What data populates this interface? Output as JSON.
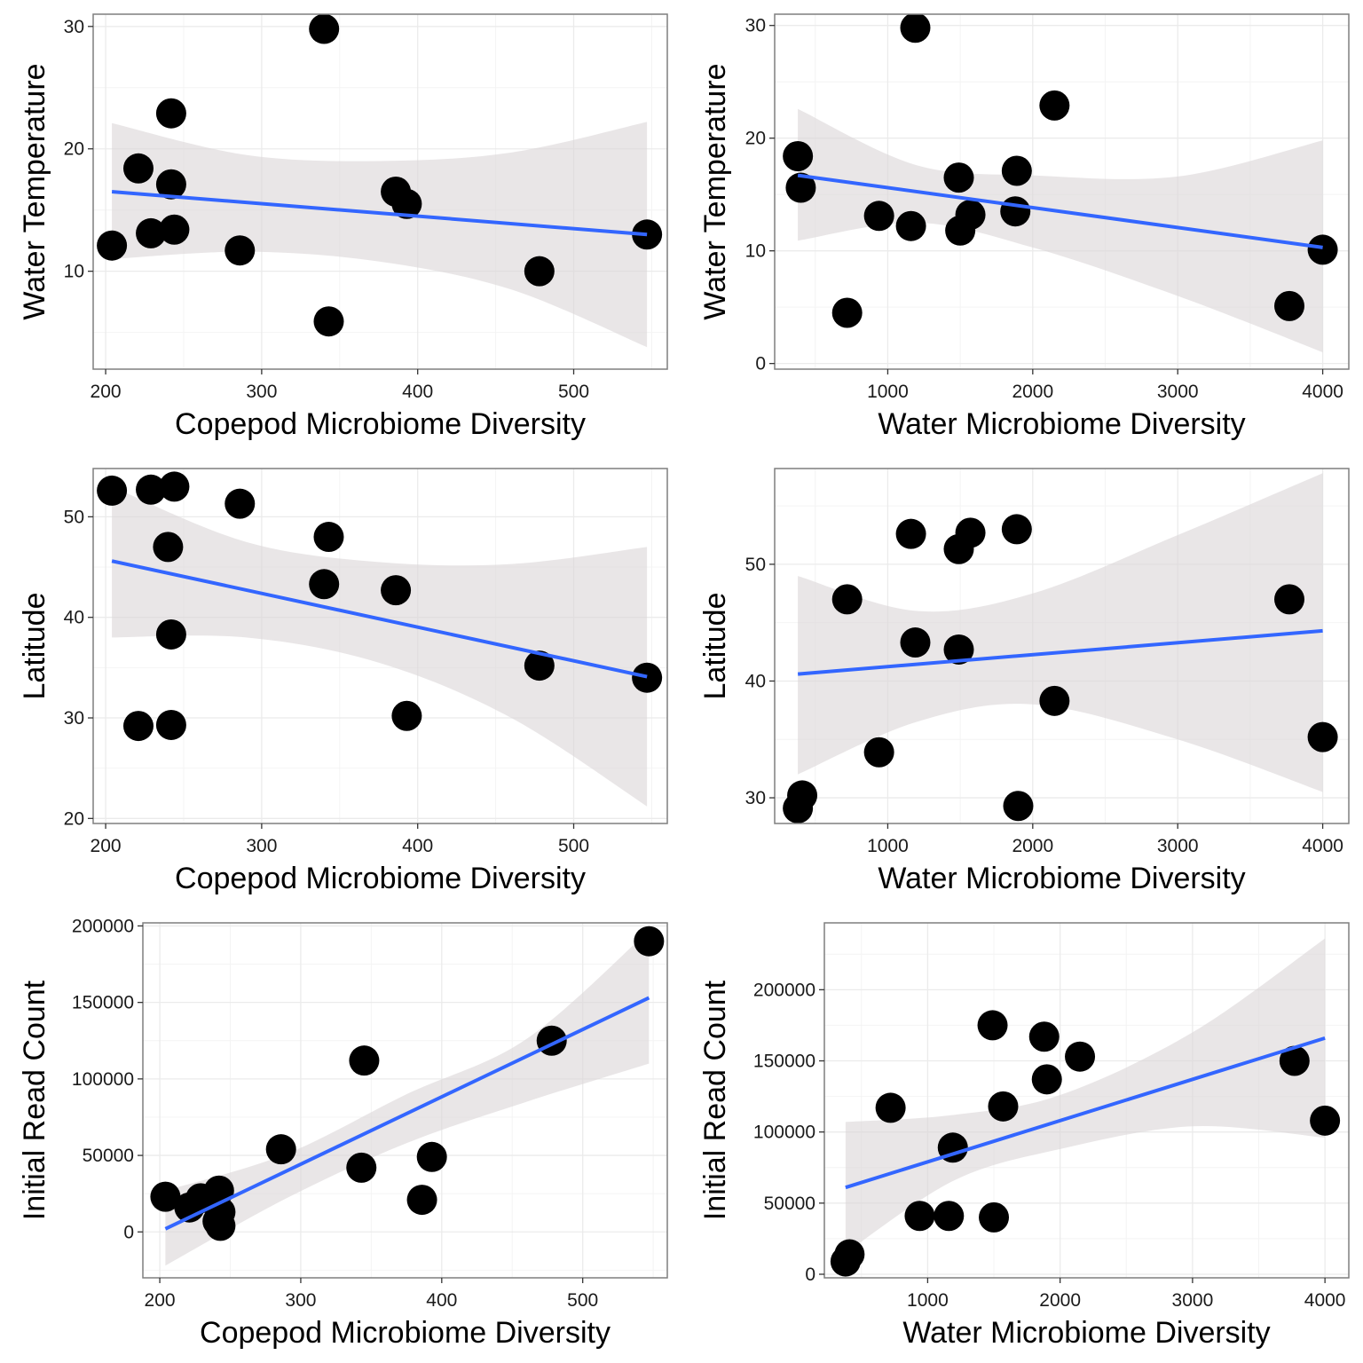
{
  "colors": {
    "line": "#3366ff",
    "ribbon": "#dcd6d8",
    "point": "#000000"
  },
  "chart_data": [
    {
      "type": "scatter",
      "xlabel": "Copepod Microbiome Diversity",
      "ylabel": "Water Temperature",
      "xlim": [
        192,
        560
      ],
      "ylim": [
        2,
        31
      ],
      "xticks": [
        200,
        300,
        400,
        500
      ],
      "xtick_labels": [
        "200",
        "300",
        "400",
        "500"
      ],
      "yticks": [
        10,
        20,
        30
      ],
      "ytick_labels": [
        "10",
        "20",
        "30"
      ],
      "grid": true,
      "points": [
        {
          "x": 204,
          "y": 12.1
        },
        {
          "x": 221,
          "y": 18.4
        },
        {
          "x": 229,
          "y": 13.1
        },
        {
          "x": 242,
          "y": 22.9
        },
        {
          "x": 242,
          "y": 17.1
        },
        {
          "x": 244,
          "y": 13.4
        },
        {
          "x": 286,
          "y": 11.7
        },
        {
          "x": 340,
          "y": 29.8
        },
        {
          "x": 343,
          "y": 5.9
        },
        {
          "x": 386,
          "y": 16.5
        },
        {
          "x": 393,
          "y": 15.5
        },
        {
          "x": 478,
          "y": 10.0
        },
        {
          "x": 547,
          "y": 13.0
        }
      ],
      "fit": {
        "x": [
          204,
          547
        ],
        "y": [
          16.5,
          13.0
        ]
      },
      "ribbon": {
        "x": [
          204,
          290,
          375,
          460,
          547
        ],
        "lower": [
          11.0,
          11.6,
          10.8,
          8.5,
          3.8
        ],
        "upper": [
          22.1,
          19.5,
          19.0,
          19.7,
          22.2
        ]
      }
    },
    {
      "type": "scatter",
      "xlabel": "Water Microbiome Diversity",
      "ylabel": "Water Temperature",
      "xlim": [
        220,
        4180
      ],
      "ylim": [
        -0.5,
        31
      ],
      "xticks": [
        1000,
        2000,
        3000,
        4000
      ],
      "xtick_labels": [
        "1000",
        "2000",
        "3000",
        "4000"
      ],
      "yticks": [
        0,
        10,
        20,
        30
      ],
      "ytick_labels": [
        "0",
        "10",
        "20",
        "30"
      ],
      "grid": true,
      "points": [
        {
          "x": 380,
          "y": 18.4
        },
        {
          "x": 400,
          "y": 15.6
        },
        {
          "x": 720,
          "y": 4.5
        },
        {
          "x": 940,
          "y": 13.1
        },
        {
          "x": 1160,
          "y": 12.2
        },
        {
          "x": 1190,
          "y": 29.8
        },
        {
          "x": 1490,
          "y": 16.5
        },
        {
          "x": 1500,
          "y": 11.8
        },
        {
          "x": 1570,
          "y": 13.2
        },
        {
          "x": 1880,
          "y": 13.5
        },
        {
          "x": 1890,
          "y": 17.1
        },
        {
          "x": 2150,
          "y": 22.9
        },
        {
          "x": 3770,
          "y": 5.1
        },
        {
          "x": 4000,
          "y": 10.1
        }
      ],
      "fit": {
        "x": [
          380,
          4000
        ],
        "y": [
          16.7,
          10.3
        ]
      },
      "ribbon": {
        "x": [
          380,
          1200,
          2000,
          3000,
          4000
        ],
        "lower": [
          10.9,
          12.5,
          10.3,
          6.0,
          1.0
        ],
        "upper": [
          22.6,
          17.6,
          16.7,
          16.6,
          19.8
        ]
      }
    },
    {
      "type": "scatter",
      "xlabel": "Copepod Microbiome Diversity",
      "ylabel": "Latitude",
      "xlim": [
        192,
        560
      ],
      "ylim": [
        19.5,
        54.8
      ],
      "xticks": [
        200,
        300,
        400,
        500
      ],
      "xtick_labels": [
        "200",
        "300",
        "400",
        "500"
      ],
      "yticks": [
        20,
        30,
        40,
        50
      ],
      "ytick_labels": [
        "20",
        "30",
        "40",
        "50"
      ],
      "grid": true,
      "points": [
        {
          "x": 204,
          "y": 52.6
        },
        {
          "x": 229,
          "y": 52.7
        },
        {
          "x": 244,
          "y": 53.0
        },
        {
          "x": 286,
          "y": 51.3
        },
        {
          "x": 240,
          "y": 47.0
        },
        {
          "x": 343,
          "y": 48.0
        },
        {
          "x": 340,
          "y": 43.3
        },
        {
          "x": 386,
          "y": 42.7
        },
        {
          "x": 242,
          "y": 38.3
        },
        {
          "x": 478,
          "y": 35.2
        },
        {
          "x": 547,
          "y": 34.0
        },
        {
          "x": 221,
          "y": 29.2
        },
        {
          "x": 242,
          "y": 29.3
        },
        {
          "x": 393,
          "y": 30.2
        }
      ],
      "fit": {
        "x": [
          204,
          547
        ],
        "y": [
          45.6,
          34.1
        ]
      },
      "ribbon": {
        "x": [
          204,
          290,
          375,
          460,
          547
        ],
        "lower": [
          38.0,
          38.0,
          35.5,
          30.0,
          21.2
        ],
        "upper": [
          53.0,
          47.5,
          45.5,
          45.3,
          47.0
        ]
      }
    },
    {
      "type": "scatter",
      "xlabel": "Water Microbiome Diversity",
      "ylabel": "Latitude",
      "xlim": [
        220,
        4180
      ],
      "ylim": [
        27.8,
        58.2
      ],
      "xticks": [
        1000,
        2000,
        3000,
        4000
      ],
      "xtick_labels": [
        "1000",
        "2000",
        "3000",
        "4000"
      ],
      "yticks": [
        30,
        40,
        50
      ],
      "ytick_labels": [
        "30",
        "40",
        "50"
      ],
      "grid": true,
      "points": [
        {
          "x": 380,
          "y": 29.1
        },
        {
          "x": 410,
          "y": 30.2
        },
        {
          "x": 720,
          "y": 47.0
        },
        {
          "x": 940,
          "y": 33.9
        },
        {
          "x": 1160,
          "y": 52.6
        },
        {
          "x": 1190,
          "y": 43.3
        },
        {
          "x": 1490,
          "y": 51.3
        },
        {
          "x": 1490,
          "y": 42.7
        },
        {
          "x": 1570,
          "y": 52.7
        },
        {
          "x": 1890,
          "y": 53.0
        },
        {
          "x": 1900,
          "y": 29.3
        },
        {
          "x": 2150,
          "y": 38.3
        },
        {
          "x": 3770,
          "y": 47.0
        },
        {
          "x": 4000,
          "y": 35.2
        }
      ],
      "fit": {
        "x": [
          380,
          4000
        ],
        "y": [
          40.6,
          44.3
        ]
      },
      "ribbon": {
        "x": [
          380,
          1200,
          2000,
          3000,
          4000
        ],
        "lower": [
          32.0,
          36.5,
          38.0,
          35.0,
          30.5
        ],
        "upper": [
          49.0,
          46.0,
          47.5,
          52.5,
          57.8
        ]
      }
    },
    {
      "type": "scatter",
      "xlabel": "Copepod Microbiome Diversity",
      "ylabel": "Initial Read Count",
      "xlim": [
        188,
        560
      ],
      "ylim": [
        -30000,
        202000
      ],
      "xticks": [
        200,
        300,
        400,
        500
      ],
      "xtick_labels": [
        "200",
        "300",
        "400",
        "500"
      ],
      "yticks": [
        0,
        50000,
        100000,
        150000,
        200000
      ],
      "ytick_labels": [
        "0",
        "50000",
        "100000",
        "150000",
        "200000"
      ],
      "grid": true,
      "points": [
        {
          "x": 204,
          "y": 23000
        },
        {
          "x": 221,
          "y": 16000
        },
        {
          "x": 229,
          "y": 22000
        },
        {
          "x": 242,
          "y": 27000
        },
        {
          "x": 243,
          "y": 13000
        },
        {
          "x": 241,
          "y": 7000
        },
        {
          "x": 243,
          "y": 4000
        },
        {
          "x": 286,
          "y": 54000
        },
        {
          "x": 343,
          "y": 42000
        },
        {
          "x": 345,
          "y": 112000
        },
        {
          "x": 386,
          "y": 21000
        },
        {
          "x": 393,
          "y": 49000
        },
        {
          "x": 478,
          "y": 125000
        },
        {
          "x": 547,
          "y": 190000
        }
      ],
      "fit": {
        "x": [
          204,
          547
        ],
        "y": [
          2000,
          153000
        ]
      },
      "ribbon": {
        "x": [
          204,
          290,
          375,
          460,
          547
        ],
        "lower": [
          -22000,
          22000,
          58000,
          85000,
          110000
        ],
        "upper": [
          27000,
          51000,
          90000,
          126000,
          197000
        ]
      }
    },
    {
      "type": "scatter",
      "xlabel": "Water Microbiome Diversity",
      "ylabel": "Initial Read Count",
      "xlim": [
        220,
        4180
      ],
      "ylim": [
        -2500,
        247000
      ],
      "xticks": [
        1000,
        2000,
        3000,
        4000
      ],
      "xtick_labels": [
        "1000",
        "2000",
        "3000",
        "4000"
      ],
      "yticks": [
        0,
        50000,
        100000,
        150000,
        200000
      ],
      "ytick_labels": [
        "0",
        "50000",
        "100000",
        "150000",
        "200000"
      ],
      "grid": true,
      "points": [
        {
          "x": 380,
          "y": 9000
        },
        {
          "x": 410,
          "y": 14000
        },
        {
          "x": 720,
          "y": 117000
        },
        {
          "x": 940,
          "y": 41000
        },
        {
          "x": 1160,
          "y": 41000
        },
        {
          "x": 1190,
          "y": 89000
        },
        {
          "x": 1490,
          "y": 175000
        },
        {
          "x": 1500,
          "y": 40000
        },
        {
          "x": 1570,
          "y": 118000
        },
        {
          "x": 1880,
          "y": 167000
        },
        {
          "x": 1900,
          "y": 137000
        },
        {
          "x": 2150,
          "y": 153000
        },
        {
          "x": 3770,
          "y": 150000
        },
        {
          "x": 4000,
          "y": 108000
        }
      ],
      "fit": {
        "x": [
          380,
          4000
        ],
        "y": [
          61000,
          166000
        ]
      },
      "ribbon": {
        "x": [
          380,
          1200,
          2000,
          3000,
          4000
        ],
        "lower": [
          15000,
          66000,
          88000,
          104000,
          96000
        ],
        "upper": [
          107000,
          112000,
          126000,
          170000,
          236000
        ]
      }
    }
  ]
}
